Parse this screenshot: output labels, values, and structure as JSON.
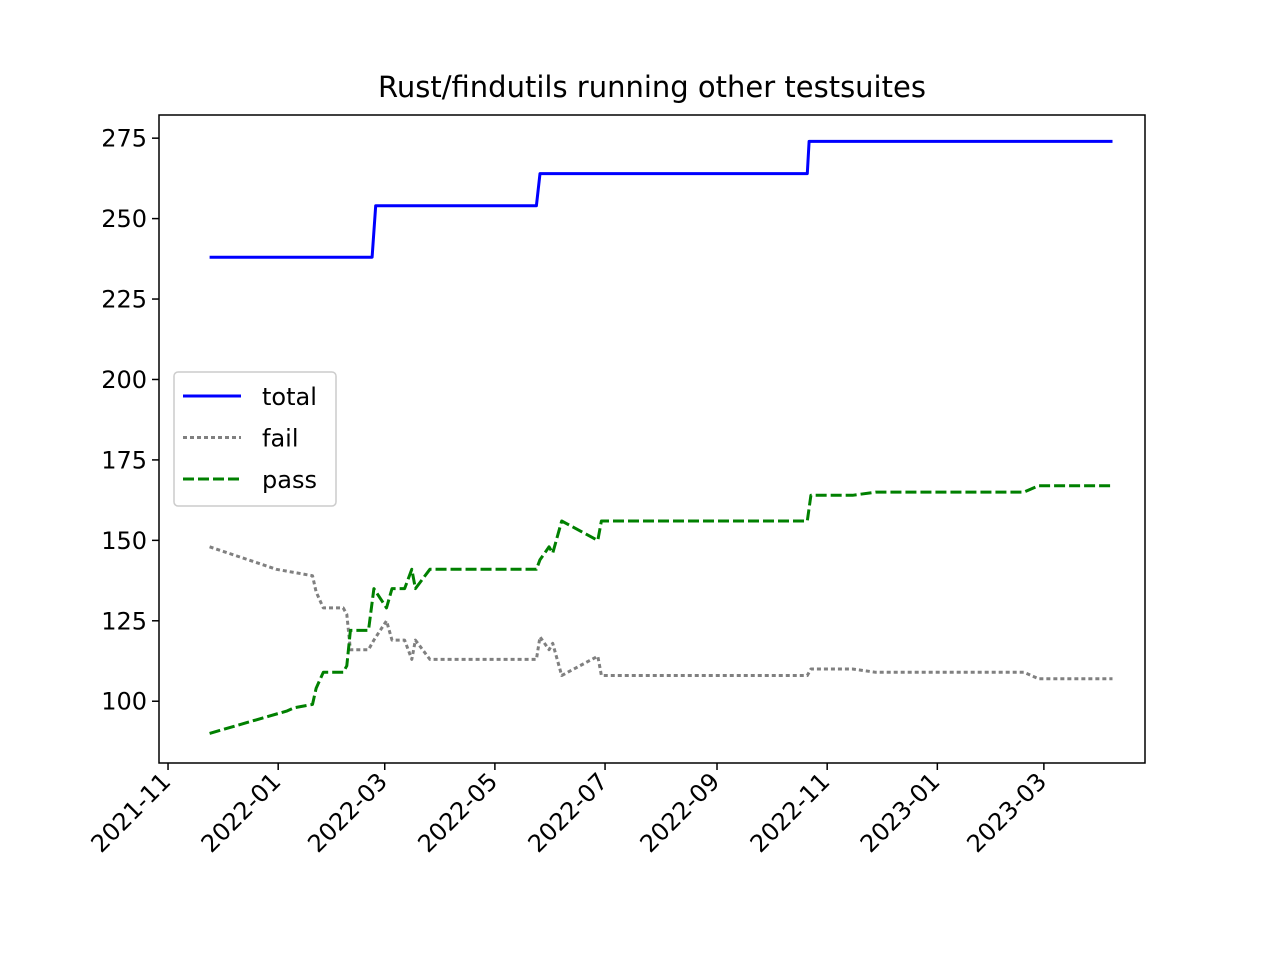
{
  "chart_data": {
    "type": "line",
    "title": "Rust/findutils running other testsuites",
    "xlabel": "",
    "ylabel": "",
    "x_axis_type": "date",
    "xlim": [
      "2021-10-27",
      "2023-04-26"
    ],
    "ylim": [
      80.8,
      282.2
    ],
    "grid": false,
    "legend_position": "center-left",
    "x_ticks": [
      "2021-11",
      "2022-01",
      "2022-03",
      "2022-05",
      "2022-07",
      "2022-09",
      "2022-11",
      "2023-01",
      "2023-03"
    ],
    "y_ticks": [
      100,
      125,
      150,
      175,
      200,
      225,
      250,
      275
    ],
    "series": [
      {
        "name": "total",
        "color": "#0000ff",
        "style": "solid",
        "points": [
          [
            "2021-11-24",
            238
          ],
          [
            "2022-02-22",
            238
          ],
          [
            "2022-02-24",
            254
          ],
          [
            "2022-05-24",
            254
          ],
          [
            "2022-05-26",
            264
          ],
          [
            "2022-10-21",
            264
          ],
          [
            "2022-10-22",
            274
          ],
          [
            "2023-04-08",
            274
          ]
        ]
      },
      {
        "name": "fail",
        "color": "#808080",
        "style": "dotted",
        "points": [
          [
            "2021-11-24",
            148
          ],
          [
            "2021-12-31",
            141
          ],
          [
            "2022-01-10",
            140
          ],
          [
            "2022-01-20",
            139
          ],
          [
            "2022-01-22",
            134
          ],
          [
            "2022-01-26",
            129
          ],
          [
            "2022-02-06",
            129
          ],
          [
            "2022-02-08",
            127
          ],
          [
            "2022-02-10",
            116
          ],
          [
            "2022-02-20",
            116
          ],
          [
            "2022-02-23",
            119
          ],
          [
            "2022-03-02",
            125
          ],
          [
            "2022-03-05",
            119
          ],
          [
            "2022-03-12",
            119
          ],
          [
            "2022-03-16",
            113
          ],
          [
            "2022-03-18",
            119
          ],
          [
            "2022-03-26",
            113
          ],
          [
            "2022-05-24",
            113
          ],
          [
            "2022-05-26",
            120
          ],
          [
            "2022-05-31",
            116
          ],
          [
            "2022-06-02",
            118
          ],
          [
            "2022-06-07",
            108
          ],
          [
            "2022-06-27",
            114
          ],
          [
            "2022-06-29",
            108
          ],
          [
            "2022-10-21",
            108
          ],
          [
            "2022-10-23",
            110
          ],
          [
            "2022-11-15",
            110
          ],
          [
            "2022-11-28",
            109
          ],
          [
            "2023-02-18",
            109
          ],
          [
            "2023-02-26",
            107
          ],
          [
            "2023-04-08",
            107
          ]
        ]
      },
      {
        "name": "pass",
        "color": "#008000",
        "style": "dashed",
        "points": [
          [
            "2021-11-24",
            90
          ],
          [
            "2022-01-06",
            97
          ],
          [
            "2022-01-10",
            98
          ],
          [
            "2022-01-20",
            99
          ],
          [
            "2022-01-22",
            104
          ],
          [
            "2022-01-26",
            109
          ],
          [
            "2022-02-06",
            109
          ],
          [
            "2022-02-08",
            111
          ],
          [
            "2022-02-10",
            122
          ],
          [
            "2022-02-20",
            122
          ],
          [
            "2022-02-23",
            135
          ],
          [
            "2022-03-02",
            129
          ],
          [
            "2022-03-05",
            135
          ],
          [
            "2022-03-12",
            135
          ],
          [
            "2022-03-16",
            141
          ],
          [
            "2022-03-18",
            135
          ],
          [
            "2022-03-26",
            141
          ],
          [
            "2022-05-24",
            141
          ],
          [
            "2022-05-26",
            144
          ],
          [
            "2022-05-31",
            148
          ],
          [
            "2022-06-02",
            146
          ],
          [
            "2022-06-07",
            156
          ],
          [
            "2022-06-27",
            150
          ],
          [
            "2022-06-29",
            156
          ],
          [
            "2022-10-21",
            156
          ],
          [
            "2022-10-23",
            164
          ],
          [
            "2022-11-15",
            164
          ],
          [
            "2022-11-28",
            165
          ],
          [
            "2023-02-18",
            165
          ],
          [
            "2023-02-26",
            167
          ],
          [
            "2023-04-08",
            167
          ]
        ]
      }
    ]
  }
}
